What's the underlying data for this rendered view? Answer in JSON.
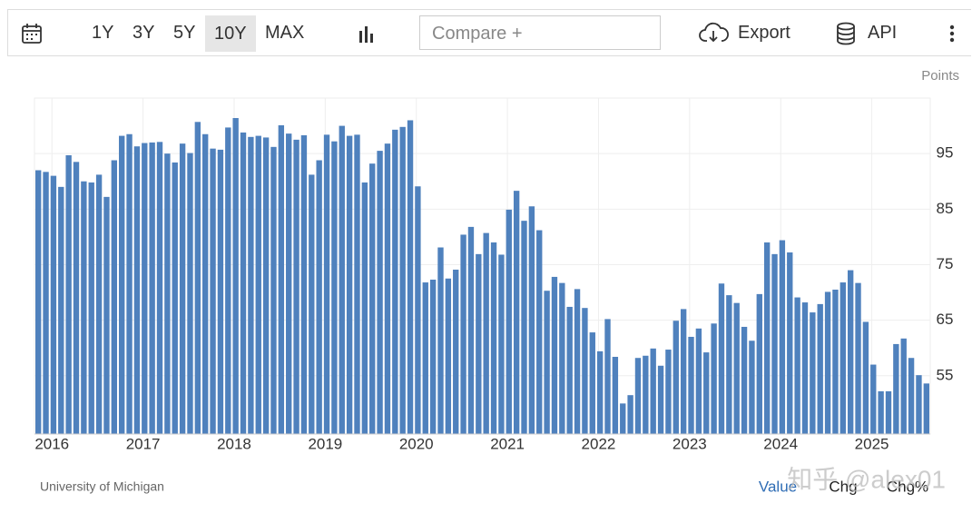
{
  "toolbar": {
    "ranges": [
      "1Y",
      "3Y",
      "5Y",
      "10Y",
      "MAX"
    ],
    "active_range": "10Y",
    "compare": "Compare +",
    "export": "Export",
    "api": "API"
  },
  "chart_data": {
    "type": "bar",
    "unit": "Points",
    "source": "University of Michigan",
    "footer_tabs": [
      "Value",
      "Chg",
      "Chg%"
    ],
    "watermark": "知乎 @alex01",
    "color": "#4f81bd",
    "grid": true,
    "categories": [
      "2016",
      null,
      null,
      null,
      null,
      null,
      null,
      null,
      null,
      null,
      null,
      null,
      "2017",
      null,
      null,
      null,
      null,
      null,
      null,
      null,
      null,
      null,
      null,
      null,
      "2018",
      null,
      null,
      null,
      null,
      null,
      null,
      null,
      null,
      null,
      null,
      null,
      "2019",
      null,
      null,
      null,
      null,
      null,
      null,
      null,
      null,
      null,
      null,
      null,
      "2020",
      null,
      null,
      null,
      null,
      null,
      null,
      null,
      null,
      null,
      null,
      null,
      "2021",
      null,
      null,
      null,
      null,
      null,
      null,
      null,
      null,
      null,
      null,
      null,
      "2022",
      null,
      null,
      null,
      null,
      null,
      null,
      null,
      null,
      null,
      null,
      null,
      "2023",
      null,
      null,
      null,
      null,
      null,
      null,
      null,
      null,
      null,
      null,
      null,
      "2024",
      null,
      null,
      null,
      null,
      null,
      null,
      null,
      null,
      null,
      null,
      null,
      "2025",
      null,
      null,
      null,
      null,
      null,
      null,
      null,
      null,
      null
    ],
    "values": [
      92.0,
      91.7,
      91.0,
      89.0,
      94.7,
      93.5,
      90.0,
      89.8,
      91.2,
      87.2,
      93.8,
      98.2,
      98.5,
      96.3,
      96.9,
      97.0,
      97.1,
      95.0,
      93.4,
      96.8,
      95.1,
      100.7,
      98.5,
      95.9,
      95.7,
      99.7,
      101.4,
      98.8,
      98.0,
      98.2,
      97.9,
      96.2,
      100.1,
      98.6,
      97.5,
      98.3,
      91.2,
      93.8,
      98.4,
      97.2,
      100.0,
      98.2,
      98.4,
      89.8,
      93.2,
      95.5,
      96.8,
      99.3,
      99.8,
      101.0,
      89.1,
      71.8,
      72.3,
      78.1,
      72.5,
      74.1,
      80.4,
      81.8,
      76.9,
      80.7,
      79.0,
      76.8,
      84.9,
      88.3,
      82.9,
      85.5,
      81.2,
      70.3,
      72.8,
      71.7,
      67.4,
      70.6,
      67.2,
      62.8,
      59.4,
      65.2,
      58.4,
      50.0,
      51.5,
      58.2,
      58.6,
      59.9,
      56.8,
      59.7,
      64.9,
      67.0,
      62.0,
      63.5,
      59.2,
      64.4,
      71.6,
      69.5,
      68.1,
      63.8,
      61.3,
      69.7,
      79.0,
      76.9,
      79.4,
      77.2,
      69.1,
      68.2,
      66.4,
      67.9,
      70.1,
      70.5,
      71.8,
      74.0,
      71.7,
      64.7,
      57.0,
      52.2,
      52.2,
      60.7,
      61.7,
      58.2,
      55.1,
      53.6
    ],
    "ylim": [
      44.5,
      105
    ],
    "yticks": [
      55,
      65,
      75,
      85,
      95
    ]
  }
}
